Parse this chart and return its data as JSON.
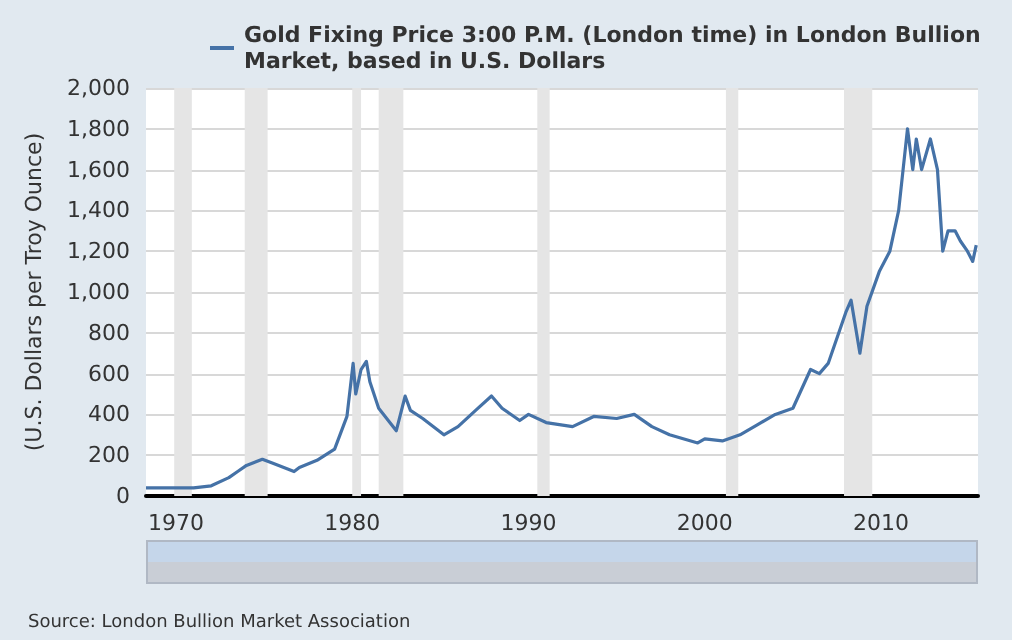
{
  "chart_data": {
    "type": "line",
    "ylabel": "(U.S. Dollars per Troy Ounce)",
    "series": [
      {
        "name": "Gold Fixing Price 3:00 P.M. (London time) in London Bullion Market, based in U.S. Dollars",
        "color": "#4572a7",
        "x": [
          1968.3,
          1969,
          1970,
          1971,
          1972,
          1973,
          1973.5,
          1974,
          1974.9,
          1975.5,
          1976.7,
          1977,
          1978,
          1979,
          1979.7,
          1980.05,
          1980.2,
          1980.5,
          1980.8,
          1981,
          1981.5,
          1982.5,
          1983,
          1983.3,
          1984,
          1985.2,
          1986,
          1987,
          1987.9,
          1988.5,
          1989.5,
          1990,
          1991,
          1992.5,
          1993.7,
          1995,
          1996,
          1997,
          1998,
          1999.6,
          2000,
          2001,
          2002,
          2003,
          2004,
          2005,
          2006,
          2006.5,
          2007,
          2008,
          2008.3,
          2008.8,
          2009.2,
          2009.9,
          2010.5,
          2011,
          2011.5,
          2011.8,
          2012,
          2012.3,
          2012.8,
          2013.2,
          2013.5,
          2013.8,
          2014.2,
          2014.5,
          2014.9,
          2015.2,
          2015.4
        ],
        "values": [
          40,
          40,
          40,
          40,
          50,
          90,
          120,
          150,
          180,
          160,
          120,
          140,
          175,
          230,
          390,
          650,
          500,
          620,
          660,
          560,
          430,
          320,
          490,
          420,
          380,
          300,
          340,
          420,
          490,
          430,
          370,
          400,
          360,
          340,
          390,
          380,
          400,
          340,
          300,
          260,
          280,
          270,
          300,
          350,
          400,
          430,
          620,
          600,
          650,
          900,
          960,
          700,
          930,
          1100,
          1200,
          1400,
          1800,
          1600,
          1750,
          1600,
          1750,
          1600,
          1200,
          1300,
          1300,
          1250,
          1200,
          1150,
          1230
        ]
      }
    ],
    "xlim": [
      1968.3,
      2015.5
    ],
    "xticks": [
      1970,
      1980,
      1990,
      2000,
      2010
    ],
    "ylim": [
      0,
      2000
    ],
    "yticks": [
      0,
      200,
      400,
      600,
      800,
      {
        "value": 1000,
        "label": "1,000"
      },
      {
        "value": 1200,
        "label": "1,200"
      },
      {
        "value": 1400,
        "label": "1,400"
      },
      {
        "value": 1600,
        "label": "1,600"
      },
      {
        "value": 1800,
        "label": "1,800"
      },
      {
        "value": 2000,
        "label": "2,000"
      }
    ],
    "bands": [
      {
        "axis": "x",
        "from": 1969.9,
        "to": 1970.9,
        "color": "#e5e5e5"
      },
      {
        "axis": "x",
        "from": 1973.9,
        "to": 1975.2,
        "color": "#e5e5e5"
      },
      {
        "axis": "x",
        "from": 1980.0,
        "to": 1980.5,
        "color": "#e5e5e5"
      },
      {
        "axis": "x",
        "from": 1981.5,
        "to": 1982.9,
        "color": "#e5e5e5"
      },
      {
        "axis": "x",
        "from": 1990.5,
        "to": 1991.2,
        "color": "#e5e5e5"
      },
      {
        "axis": "x",
        "from": 2001.2,
        "to": 2001.9,
        "color": "#e5e5e5"
      },
      {
        "axis": "x",
        "from": 2007.9,
        "to": 2009.5,
        "color": "#e5e5e5"
      }
    ],
    "annotations": [
      "Source: London Bullion Market Association"
    ],
    "grid": "y",
    "legend": "top",
    "marker": "none",
    "line_style": "solid"
  }
}
